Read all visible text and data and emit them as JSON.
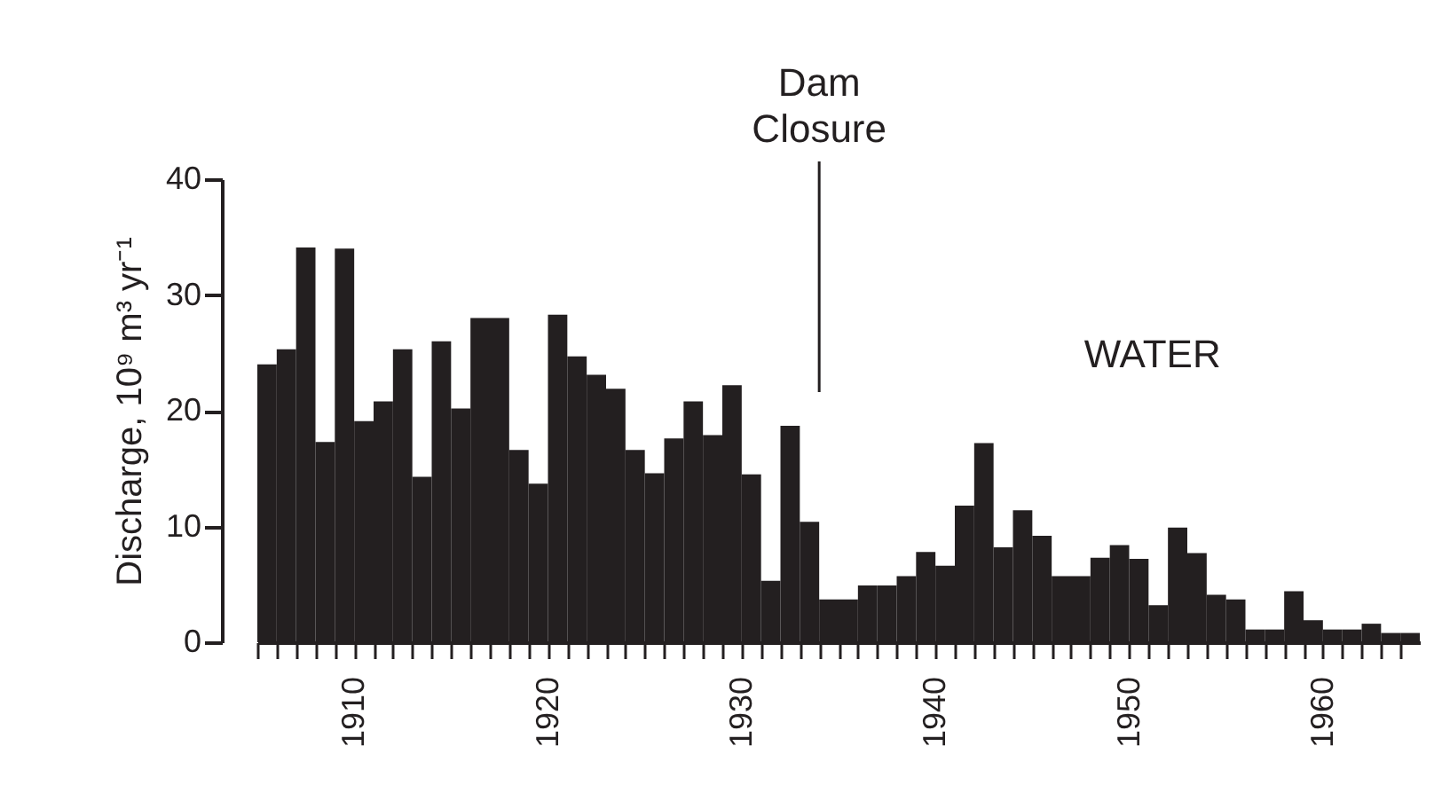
{
  "chart_data": {
    "type": "histogram",
    "ylabel": "Discharge,  10⁹ m³ yr⁻¹",
    "color": "#231f20",
    "bins": [
      1905,
      1906,
      1907,
      1908,
      1909,
      1910,
      1911,
      1912,
      1913,
      1914,
      1915,
      1916,
      1917,
      1918,
      1919,
      1920,
      1921,
      1922,
      1923,
      1924,
      1925,
      1926,
      1927,
      1928,
      1929,
      1930,
      1931,
      1932,
      1933,
      1934,
      1935,
      1936,
      1937,
      1938,
      1939,
      1940,
      1941,
      1942,
      1943,
      1944,
      1945,
      1946,
      1947,
      1948,
      1949,
      1950,
      1951,
      1952,
      1953,
      1954,
      1955,
      1956,
      1957,
      1958,
      1959,
      1960,
      1961,
      1962,
      1963,
      1964,
      1965
    ],
    "values": [
      24.0,
      25.3,
      34.1,
      17.3,
      34.0,
      19.1,
      20.8,
      25.3,
      14.3,
      26.0,
      20.2,
      28.0,
      28.0,
      16.6,
      13.7,
      28.3,
      24.7,
      23.1,
      21.9,
      16.6,
      14.6,
      17.6,
      20.8,
      17.9,
      22.2,
      14.5,
      5.3,
      18.7,
      10.4,
      3.7,
      3.7,
      4.9,
      4.9,
      5.7,
      7.8,
      6.6,
      11.8,
      17.2,
      8.2,
      11.4,
      9.2,
      5.7,
      5.7,
      7.3,
      8.4,
      7.2,
      3.2,
      9.9,
      7.7,
      4.1,
      3.7,
      1.1,
      1.1,
      4.4,
      1.9,
      1.1,
      1.1,
      1.6,
      0.8,
      0.8
    ],
    "xlim": [
      1905,
      1965
    ],
    "xticks": [
      {
        "value": 1905,
        "label": null
      },
      {
        "value": 1906,
        "label": null
      },
      {
        "value": 1907,
        "label": null
      },
      {
        "value": 1908,
        "label": null
      },
      {
        "value": 1909,
        "label": null
      },
      1910,
      {
        "value": 1911,
        "label": null
      },
      {
        "value": 1912,
        "label": null
      },
      {
        "value": 1913,
        "label": null
      },
      {
        "value": 1914,
        "label": null
      },
      {
        "value": 1915,
        "label": null
      },
      {
        "value": 1916,
        "label": null
      },
      {
        "value": 1917,
        "label": null
      },
      {
        "value": 1918,
        "label": null
      },
      {
        "value": 1919,
        "label": null
      },
      1920,
      {
        "value": 1921,
        "label": null
      },
      {
        "value": 1922,
        "label": null
      },
      {
        "value": 1923,
        "label": null
      },
      {
        "value": 1924,
        "label": null
      },
      {
        "value": 1925,
        "label": null
      },
      {
        "value": 1926,
        "label": null
      },
      {
        "value": 1927,
        "label": null
      },
      {
        "value": 1928,
        "label": null
      },
      {
        "value": 1929,
        "label": null
      },
      1930,
      {
        "value": 1931,
        "label": null
      },
      {
        "value": 1932,
        "label": null
      },
      {
        "value": 1933,
        "label": null
      },
      {
        "value": 1934,
        "label": null
      },
      {
        "value": 1935,
        "label": null
      },
      {
        "value": 1936,
        "label": null
      },
      {
        "value": 1937,
        "label": null
      },
      {
        "value": 1938,
        "label": null
      },
      {
        "value": 1939,
        "label": null
      },
      1940,
      {
        "value": 1941,
        "label": null
      },
      {
        "value": 1942,
        "label": null
      },
      {
        "value": 1943,
        "label": null
      },
      {
        "value": 1944,
        "label": null
      },
      {
        "value": 1945,
        "label": null
      },
      {
        "value": 1946,
        "label": null
      },
      {
        "value": 1947,
        "label": null
      },
      {
        "value": 1948,
        "label": null
      },
      {
        "value": 1949,
        "label": null
      },
      1950,
      {
        "value": 1951,
        "label": null
      },
      {
        "value": 1952,
        "label": null
      },
      {
        "value": 1953,
        "label": null
      },
      {
        "value": 1954,
        "label": null
      },
      {
        "value": 1955,
        "label": null
      },
      {
        "value": 1956,
        "label": null
      },
      {
        "value": 1957,
        "label": null
      },
      {
        "value": 1958,
        "label": null
      },
      {
        "value": 1959,
        "label": null
      },
      1960,
      {
        "value": 1961,
        "label": null
      },
      {
        "value": 1962,
        "label": null
      },
      {
        "value": 1963,
        "label": null
      },
      {
        "value": 1964,
        "label": null
      }
    ],
    "ylim": [
      0,
      40
    ],
    "yticks": [
      0,
      10,
      20,
      30,
      40
    ],
    "grid": false,
    "ref_lines": [
      {
        "axis": "x",
        "value": 1934,
        "label": "Dam\nClosure",
        "color": "#231f20"
      }
    ],
    "annotations": [
      "WATER"
    ]
  }
}
